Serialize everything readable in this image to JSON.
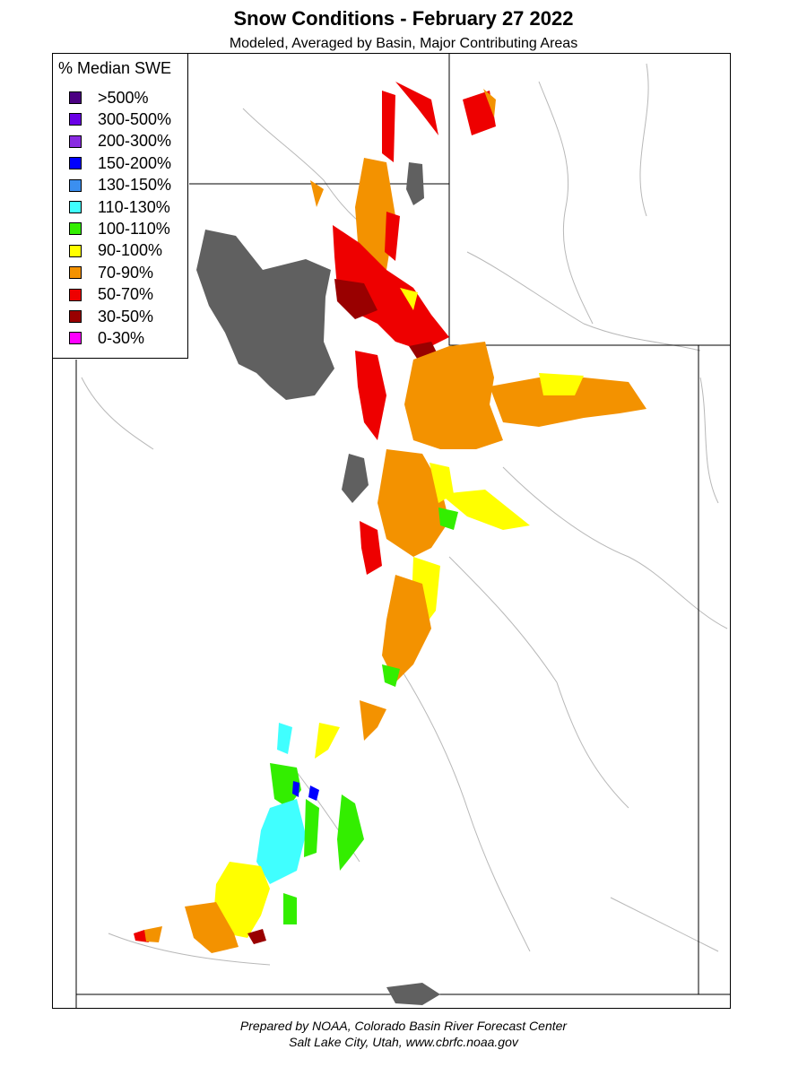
{
  "title": "Snow Conditions - February 27 2022",
  "subtitle": "Modeled, Averaged by Basin, Major Contributing Areas",
  "legend": {
    "title": "% Median SWE",
    "items": [
      {
        "label": ">500%",
        "color": "#4b0082"
      },
      {
        "label": "300-500%",
        "color": "#6a00e6"
      },
      {
        "label": "200-300%",
        "color": "#8a2be2"
      },
      {
        "label": "150-200%",
        "color": "#0000ff"
      },
      {
        "label": "130-150%",
        "color": "#3b8ff0"
      },
      {
        "label": "110-130%",
        "color": "#40ffff"
      },
      {
        "label": "100-110%",
        "color": "#33ee00"
      },
      {
        "label": "90-100%",
        "color": "#ffff00"
      },
      {
        "label": "70-90%",
        "color": "#f39200"
      },
      {
        "label": "50-70%",
        "color": "#ee0000"
      },
      {
        "label": "30-50%",
        "color": "#990000"
      },
      {
        "label": "0-30%",
        "color": "#ff00ff"
      }
    ]
  },
  "colors": {
    "water": "#606060",
    "state_border": "#000000",
    "river": "#b8b8b8"
  },
  "footer": {
    "line1": "Prepared by NOAA, Colorado Basin River Forecast Center",
    "line2": "Salt Lake City, Utah, www.cbrfc.noaa.gov"
  }
}
